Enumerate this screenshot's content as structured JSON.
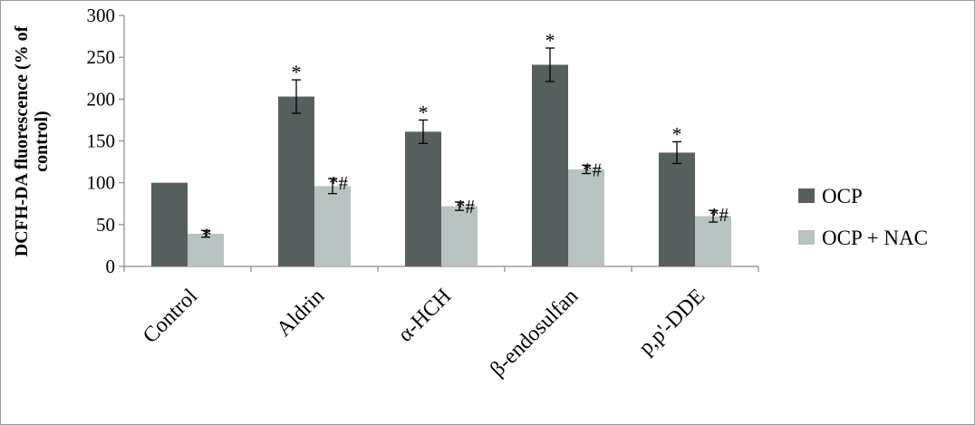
{
  "chart_data": {
    "type": "bar",
    "title": "",
    "ylabel": "DCFH-DA fluorescence (% of control)",
    "xlabel": "",
    "ylim": [
      0,
      300
    ],
    "yticks": [
      0,
      50,
      100,
      150,
      200,
      250,
      300
    ],
    "categories": [
      "Control",
      "Aldrin",
      "α-HCH",
      "β-endosulfan",
      "p,p'-DDE"
    ],
    "series": [
      {
        "name": "OCP",
        "color": "#575f5f",
        "values": [
          100,
          203,
          161,
          241,
          136
        ],
        "errors": [
          0,
          20,
          14,
          20,
          13
        ],
        "annotations": [
          "",
          "*",
          "*",
          "*",
          "*"
        ]
      },
      {
        "name": "OCP + NAC",
        "color": "#b7c2c1",
        "values": [
          39,
          96,
          72,
          116,
          60
        ],
        "errors": [
          4,
          9,
          5,
          5,
          7
        ],
        "annotations": [
          "*",
          "*#",
          "*#",
          "*#",
          "*#"
        ]
      }
    ],
    "legend_position": "right",
    "grid": false
  }
}
